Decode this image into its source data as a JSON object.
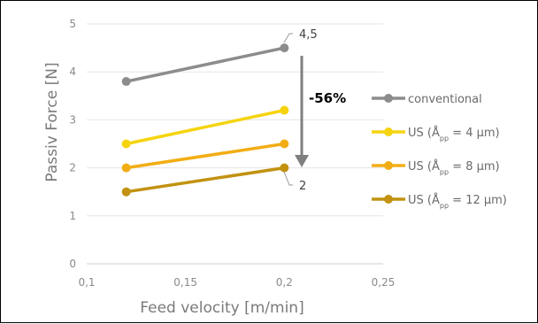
{
  "chart_data": {
    "type": "line",
    "title": "",
    "xlabel": "Feed velocity [m/min]",
    "ylabel": "Passiv Force [N]",
    "xlim": [
      0.1,
      0.25
    ],
    "ylim": [
      0,
      5
    ],
    "x_ticks": [
      "0,1",
      "0,15",
      "0,2",
      "0,25"
    ],
    "y_ticks": [
      "0",
      "1",
      "2",
      "3",
      "4",
      "5"
    ],
    "grid": "horizontal",
    "legend_position": "right",
    "x": [
      0.12,
      0.2
    ],
    "series": [
      {
        "name": "conventional",
        "color": "#8c8c8c",
        "values": [
          3.8,
          4.5
        ]
      },
      {
        "name": "US (Å_pp = 4 µm)",
        "legend_main": "US (Å",
        "legend_sub": "pp",
        "legend_rest": " = 4 µm)",
        "color": "#f5d40f",
        "values": [
          2.5,
          3.2
        ]
      },
      {
        "name": "US (Å_pp = 8 µm)",
        "legend_main": "US (Å",
        "legend_sub": "pp",
        "legend_rest": " = 8 µm)",
        "color": "#f2ad14",
        "values": [
          2.0,
          2.5
        ]
      },
      {
        "name": "US (Å_pp = 12 µm)",
        "legend_main": "US (Å",
        "legend_sub": "pp",
        "legend_rest": " = 12 µm)",
        "color": "#c29210",
        "values": [
          1.5,
          2.0
        ]
      }
    ],
    "annotations": {
      "top_value": "4,5",
      "bottom_value": "2",
      "reduction": "-56%"
    }
  }
}
